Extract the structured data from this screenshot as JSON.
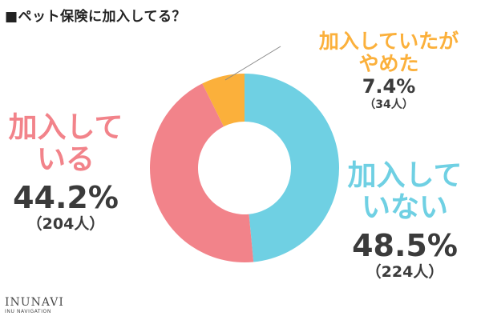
{
  "title": "■ペット保険に加入してる？",
  "brand": {
    "name": "INUNAVI",
    "sub": "INU NAVIGATION"
  },
  "chart_data": {
    "type": "pie",
    "donut": true,
    "title": "■ペット保険に加入してる？",
    "slices": [
      {
        "name_line1": "加入して",
        "name_line2": "いない",
        "percent_label": "48.5%",
        "count_label": "（224人）",
        "value": 224,
        "percent": 48.5,
        "color": "#6fd0e3"
      },
      {
        "name_line1": "加入して",
        "name_line2": "いる",
        "percent_label": "44.2%",
        "count_label": "（204人）",
        "value": 204,
        "percent": 44.2,
        "color": "#f2838a"
      },
      {
        "name_line1": "加入していたが",
        "name_line2": "やめた",
        "percent_label": "7.4%",
        "count_label": "（34人）",
        "value": 34,
        "percent": 7.4,
        "color": "#fbb03b"
      }
    ]
  }
}
